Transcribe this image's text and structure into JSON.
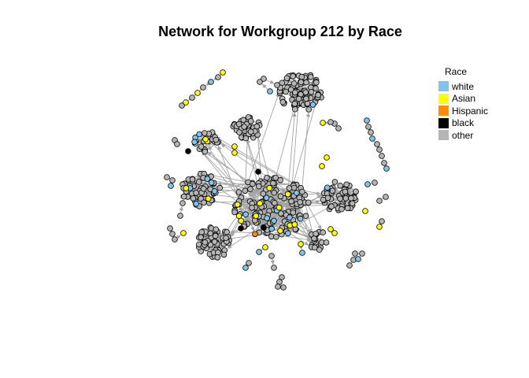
{
  "title": "Network for Workgroup 212 by Race",
  "legend": {
    "title": "Race",
    "items": [
      {
        "label": "white",
        "color": "#7ec4ec"
      },
      {
        "label": "Asian",
        "color": "#ffff00"
      },
      {
        "label": "Hispanic",
        "color": "#ff8c00"
      },
      {
        "label": "black",
        "color": "#000000"
      },
      {
        "label": "other",
        "color": "#b5b5b5"
      }
    ]
  },
  "colors": {
    "edge": "#a3a3a3",
    "node_outline": "#000000"
  }
}
